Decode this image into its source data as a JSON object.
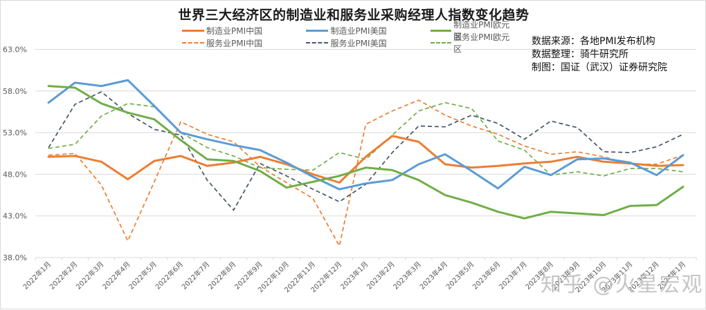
{
  "chart_data": {
    "type": "line",
    "title": "世界三大经济区的制造业和服务业采购经理人指数变化趋势",
    "xlabel": "",
    "ylabel": "",
    "ylim": [
      38.0,
      63.0
    ],
    "yticks": [
      "63.0%",
      "58.0%",
      "53.0%",
      "48.0%",
      "43.0%",
      "38.0%"
    ],
    "grid": true,
    "legend_position": "top",
    "categories": [
      "2022年1月",
      "2022年2月",
      "2022年3月",
      "2022年4月",
      "2022年5月",
      "2022年6月",
      "2022年7月",
      "2022年8月",
      "2022年9月",
      "2022年10月",
      "2022年11月",
      "2022年12月",
      "2023年1月",
      "2023年2月",
      "2023年3月",
      "2023年4月",
      "2023年5月",
      "2023年6月",
      "2023年7月",
      "2023年8月",
      "2023年9月",
      "2023年10月",
      "2023年11月",
      "2023年12月",
      "2024年1月"
    ],
    "series": [
      {
        "name": "制造业PMI中国",
        "color": "#ed7d31",
        "dash": false,
        "values": [
          50.1,
          50.2,
          49.5,
          47.4,
          49.6,
          50.2,
          49.0,
          49.4,
          50.1,
          49.2,
          48.0,
          47.0,
          50.1,
          52.6,
          51.9,
          49.2,
          48.8,
          49.0,
          49.3,
          49.5,
          50.1,
          49.5,
          49.3,
          49.0,
          49.1
        ]
      },
      {
        "name": "制造业PMI美国",
        "color": "#5b9bd5",
        "dash": false,
        "values": [
          56.6,
          59.0,
          58.6,
          59.3,
          56.2,
          53.0,
          52.2,
          51.5,
          50.9,
          49.4,
          47.7,
          46.2,
          46.9,
          47.3,
          49.2,
          50.4,
          48.4,
          46.3,
          48.9,
          47.9,
          49.8,
          49.9,
          49.4,
          47.9,
          50.3
        ]
      },
      {
        "name": "制造业PMI欧元区",
        "color": "#70ad47",
        "dash": false,
        "values": [
          58.6,
          58.4,
          56.5,
          55.4,
          54.6,
          52.1,
          49.8,
          49.6,
          48.4,
          46.4,
          47.1,
          47.8,
          48.8,
          48.5,
          47.3,
          45.5,
          44.6,
          43.5,
          42.7,
          43.5,
          43.3,
          43.1,
          44.2,
          44.3,
          46.5
        ]
      },
      {
        "name": "服务业PMI中国",
        "color": "#ed7d31",
        "dash": true,
        "values": [
          50.3,
          50.5,
          46.7,
          40.0,
          47.1,
          54.3,
          52.8,
          51.9,
          48.9,
          47.0,
          45.1,
          39.4,
          54.0,
          55.6,
          56.9,
          55.1,
          53.8,
          52.8,
          51.4,
          50.4,
          50.7,
          50.1,
          49.2,
          49.2,
          50.3
        ]
      },
      {
        "name": "服务业PMI美国",
        "color": "#44546a",
        "dash": true,
        "values": [
          51.2,
          56.4,
          57.9,
          55.3,
          53.4,
          52.7,
          47.3,
          43.7,
          49.3,
          47.8,
          46.2,
          44.7,
          46.8,
          50.6,
          53.8,
          53.7,
          55.1,
          54.1,
          52.2,
          54.4,
          53.6,
          50.7,
          50.6,
          51.3,
          52.8
        ]
      },
      {
        "name": "服务业PMI欧元区",
        "color": "#70ad47",
        "dash": true,
        "values": [
          51.1,
          51.6,
          55.0,
          56.5,
          56.1,
          53.0,
          51.2,
          50.2,
          48.8,
          48.6,
          48.5,
          50.6,
          49.8,
          52.7,
          55.6,
          56.6,
          55.9,
          52.0,
          50.9,
          47.9,
          48.3,
          47.8,
          48.7,
          48.7,
          48.3
        ]
      }
    ]
  },
  "legend": {
    "row1": [
      "制造业PMI中国",
      "制造业PMI美国",
      "制造业PMI欧元区"
    ],
    "row2": [
      "服务业PMI中国",
      "服务业PMI美国",
      "服务业PMI欧元区"
    ]
  },
  "notes": {
    "source": "数据来源：各地PMI发布机构",
    "compiled": "数据整理：骑牛研究所",
    "drawn": "制图：国证（武汉）证券研究院"
  },
  "watermark": "知乎 @火星宏观"
}
